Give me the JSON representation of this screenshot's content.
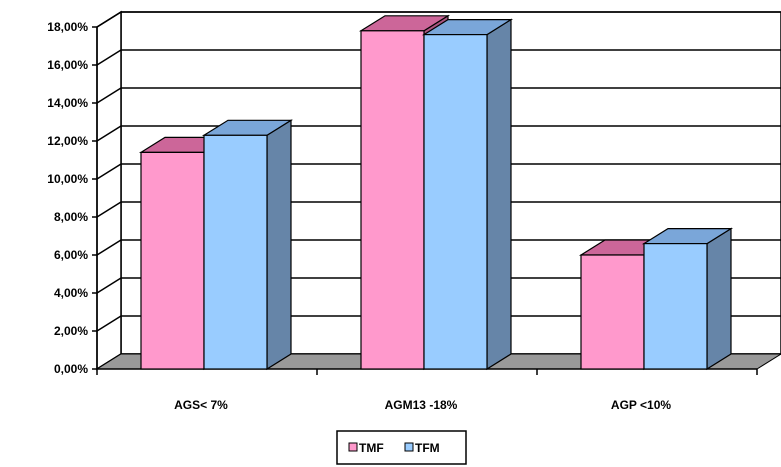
{
  "chart_data": {
    "type": "bar",
    "categories": [
      "AGS< 7%",
      "AGM13 -18%",
      "AGP <10%"
    ],
    "series": [
      {
        "name": "TMF",
        "values": [
          11.4,
          17.8,
          6.0
        ],
        "color": "#ff99cc",
        "top_color": "#cc6699"
      },
      {
        "name": "TFM",
        "values": [
          12.3,
          17.6,
          6.6
        ],
        "color": "#99ccff",
        "side_color": "#6685a8",
        "top_color": "#7aa6d9"
      }
    ],
    "ylim": [
      0,
      18
    ],
    "yticks": [
      "0,00%",
      "2,00%",
      "4,00%",
      "6,00%",
      "8,00%",
      "10,00%",
      "12,00%",
      "14,00%",
      "16,00%",
      "18,00%"
    ],
    "title": "",
    "xlabel": "",
    "ylabel": "",
    "grid": true,
    "legend_position": "bottom",
    "floor_color": "#999999",
    "wall_color": "#ffffff"
  }
}
